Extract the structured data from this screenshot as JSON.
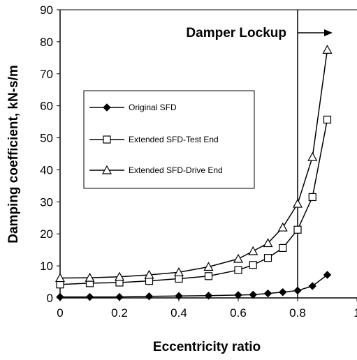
{
  "chart_data": {
    "type": "line",
    "xlabel": "Eccentricity ratio",
    "ylabel": "Damping coefficient, kN-s/m",
    "xlim": [
      0,
      1
    ],
    "ylim": [
      0,
      90
    ],
    "x_ticks": [
      "0",
      "0.2",
      "0.4",
      "0.6",
      "0.8",
      "1"
    ],
    "y_ticks": [
      "0",
      "10",
      "20",
      "30",
      "40",
      "50",
      "60",
      "70",
      "80",
      "90"
    ],
    "grid": false,
    "legend_position": "upper-left inside plot",
    "annotation": {
      "text": "Damper Lockup",
      "line_x": 0.8,
      "arrow": "right"
    },
    "series": [
      {
        "name": "Original SFD",
        "marker": "filled-diamond",
        "x": [
          0,
          0.1,
          0.2,
          0.3,
          0.4,
          0.5,
          0.6,
          0.65,
          0.7,
          0.75,
          0.8,
          0.85,
          0.9
        ],
        "values": [
          0.3,
          0.3,
          0.3,
          0.5,
          0.6,
          0.7,
          0.9,
          1.0,
          1.4,
          1.8,
          2.3,
          3.7,
          7.2
        ]
      },
      {
        "name": "Extended SFD-Test End",
        "marker": "open-square",
        "x": [
          0,
          0.1,
          0.2,
          0.3,
          0.4,
          0.5,
          0.6,
          0.65,
          0.7,
          0.75,
          0.8,
          0.85,
          0.9
        ],
        "values": [
          4.2,
          4.6,
          4.8,
          5.3,
          6.0,
          6.8,
          8.7,
          10.3,
          12.5,
          15.6,
          21.3,
          31.5,
          55.7
        ]
      },
      {
        "name": "Extended SFD-Drive End",
        "marker": "open-triangle",
        "x": [
          0,
          0.1,
          0.2,
          0.3,
          0.4,
          0.5,
          0.6,
          0.65,
          0.7,
          0.75,
          0.8,
          0.85,
          0.9
        ],
        "values": [
          6.2,
          6.3,
          6.6,
          7.2,
          8.0,
          9.7,
          12.2,
          14.6,
          17.1,
          22.0,
          29.4,
          44.0,
          77.5
        ]
      }
    ]
  }
}
